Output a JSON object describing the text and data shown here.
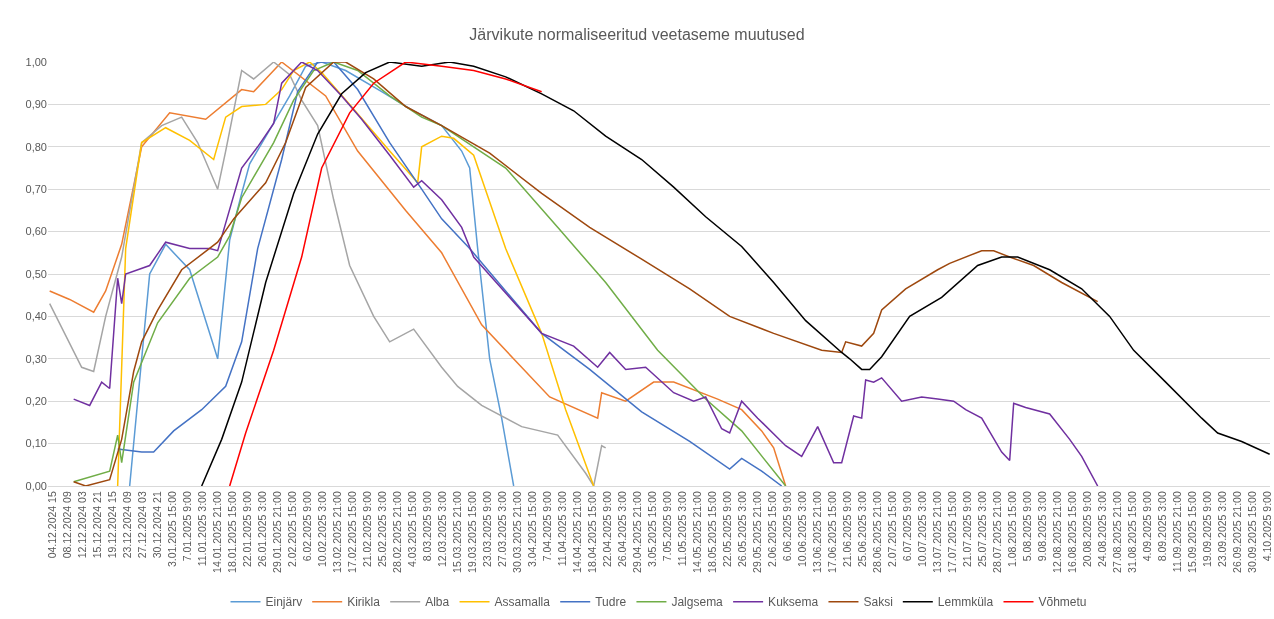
{
  "chart_data": {
    "type": "line",
    "title": "Järvikute normaliseeritud veetaseme muutused",
    "grid": "y",
    "legend": "bottom",
    "marker": "none",
    "line_style": "solid",
    "xlim": [
      "2024-12-03T14:00",
      "2025-10-05T02:00"
    ],
    "ylim": [
      0,
      1
    ],
    "yticks": [
      {
        "value": 0,
        "label": "0,00"
      },
      {
        "value": 0.1,
        "label": "0,10"
      },
      {
        "value": 0.2,
        "label": "0,20"
      },
      {
        "value": 0.3,
        "label": "0,30"
      },
      {
        "value": 0.4,
        "label": "0,40"
      },
      {
        "value": 0.5,
        "label": "0,50"
      },
      {
        "value": 0.6,
        "label": "0,60"
      },
      {
        "value": 0.7,
        "label": "0,70"
      },
      {
        "value": 0.8,
        "label": "0,80"
      },
      {
        "value": 0.9,
        "label": "0,90"
      },
      {
        "value": 1,
        "label": "1,00"
      }
    ],
    "xticks": [
      {
        "value": "2024-12-04T15:00",
        "label": "04.12.2024 15"
      },
      {
        "value": "2024-12-08T09:00",
        "label": "08.12.2024 09"
      },
      {
        "value": "2024-12-12T03:00",
        "label": "12.12.2024 03"
      },
      {
        "value": "2024-12-15T21:00",
        "label": "15.12.2024 21"
      },
      {
        "value": "2024-12-19T15:00",
        "label": "19.12.2024 15"
      },
      {
        "value": "2024-12-23T09:00",
        "label": "23.12.2024 09"
      },
      {
        "value": "2024-12-27T03:00",
        "label": "27.12.2024 03"
      },
      {
        "value": "2024-12-30T21:00",
        "label": "30.12.2024 21"
      },
      {
        "value": "2025-01-03T15:00",
        "label": "3.01.2025 15:00"
      },
      {
        "value": "2025-01-07T09:00",
        "label": "7.01.2025 9:00"
      },
      {
        "value": "2025-01-11T03:00",
        "label": "11.01.2025 3:00"
      },
      {
        "value": "2025-01-14T21:00",
        "label": "14.01.2025 21:00"
      },
      {
        "value": "2025-01-18T15:00",
        "label": "18.01.2025 15:00"
      },
      {
        "value": "2025-01-22T09:00",
        "label": "22.01.2025 9:00"
      },
      {
        "value": "2025-01-26T03:00",
        "label": "26.01.2025 3:00"
      },
      {
        "value": "2025-01-29T21:00",
        "label": "29.01.2025 21:00"
      },
      {
        "value": "2025-02-02T15:00",
        "label": "2.02.2025 15:00"
      },
      {
        "value": "2025-02-06T09:00",
        "label": "6.02.2025 9:00"
      },
      {
        "value": "2025-02-10T03:00",
        "label": "10.02.2025 3:00"
      },
      {
        "value": "2025-02-13T21:00",
        "label": "13.02.2025 21:00"
      },
      {
        "value": "2025-02-17T15:00",
        "label": "17.02.2025 15:00"
      },
      {
        "value": "2025-02-21T09:00",
        "label": "21.02.2025 9:00"
      },
      {
        "value": "2025-02-25T03:00",
        "label": "25.02.2025 3:00"
      },
      {
        "value": "2025-02-28T21:00",
        "label": "28.02.2025 21:00"
      },
      {
        "value": "2025-03-04T15:00",
        "label": "4.03.2025 15:00"
      },
      {
        "value": "2025-03-08T09:00",
        "label": "8.03.2025 9:00"
      },
      {
        "value": "2025-03-12T03:00",
        "label": "12.03.2025 3:00"
      },
      {
        "value": "2025-03-15T21:00",
        "label": "15.03.2025 21:00"
      },
      {
        "value": "2025-03-19T15:00",
        "label": "19.03.2025 15:00"
      },
      {
        "value": "2025-03-23T09:00",
        "label": "23.03.2025 9:00"
      },
      {
        "value": "2025-03-27T03:00",
        "label": "27.03.2025 3:00"
      },
      {
        "value": "2025-03-30T21:00",
        "label": "30.03.2025 21:00"
      },
      {
        "value": "2025-04-03T15:00",
        "label": "3.04.2025 15:00"
      },
      {
        "value": "2025-04-07T09:00",
        "label": "7.04.2025 9:00"
      },
      {
        "value": "2025-04-11T03:00",
        "label": "11.04.2025 3:00"
      },
      {
        "value": "2025-04-14T21:00",
        "label": "14.04.2025 21:00"
      },
      {
        "value": "2025-04-18T15:00",
        "label": "18.04.2025 15:00"
      },
      {
        "value": "2025-04-22T09:00",
        "label": "22.04.2025 9:00"
      },
      {
        "value": "2025-04-26T03:00",
        "label": "26.04.2025 3:00"
      },
      {
        "value": "2025-04-29T21:00",
        "label": "29.04.2025 21:00"
      },
      {
        "value": "2025-05-03T15:00",
        "label": "3.05.2025 15:00"
      },
      {
        "value": "2025-05-07T09:00",
        "label": "7.05.2025 9:00"
      },
      {
        "value": "2025-05-11T03:00",
        "label": "11.05.2025 3:00"
      },
      {
        "value": "2025-05-14T21:00",
        "label": "14.05.2025 21:00"
      },
      {
        "value": "2025-05-18T15:00",
        "label": "18.05.2025 15:00"
      },
      {
        "value": "2025-05-22T09:00",
        "label": "22.05.2025 9:00"
      },
      {
        "value": "2025-05-26T03:00",
        "label": "26.05.2025 3:00"
      },
      {
        "value": "2025-05-29T21:00",
        "label": "29.05.2025 21:00"
      },
      {
        "value": "2025-06-02T15:00",
        "label": "2.06.2025 15:00"
      },
      {
        "value": "2025-06-06T09:00",
        "label": "6.06.2025 9:00"
      },
      {
        "value": "2025-06-10T03:00",
        "label": "10.06.2025 3:00"
      },
      {
        "value": "2025-06-13T21:00",
        "label": "13.06.2025 21:00"
      },
      {
        "value": "2025-06-17T15:00",
        "label": "17.06.2025 15:00"
      },
      {
        "value": "2025-06-21T09:00",
        "label": "21.06.2025 9:00"
      },
      {
        "value": "2025-06-25T03:00",
        "label": "25.06.2025 3:00"
      },
      {
        "value": "2025-06-28T21:00",
        "label": "28.06.2025 21:00"
      },
      {
        "value": "2025-07-02T15:00",
        "label": "2.07.2025 15:00"
      },
      {
        "value": "2025-07-06T09:00",
        "label": "6.07.2025 9:00"
      },
      {
        "value": "2025-07-10T03:00",
        "label": "10.07.2025 3:00"
      },
      {
        "value": "2025-07-13T21:00",
        "label": "13.07.2025 21:00"
      },
      {
        "value": "2025-07-17T15:00",
        "label": "17.07.2025 15:00"
      },
      {
        "value": "2025-07-21T09:00",
        "label": "21.07.2025 9:00"
      },
      {
        "value": "2025-07-25T03:00",
        "label": "25.07.2025 3:00"
      },
      {
        "value": "2025-07-28T21:00",
        "label": "28.07.2025 21:00"
      },
      {
        "value": "2025-08-01T15:00",
        "label": "1.08.2025 15:00"
      },
      {
        "value": "2025-08-05T09:00",
        "label": "5.08.2025 9:00"
      },
      {
        "value": "2025-08-09T03:00",
        "label": "9.08.2025 3:00"
      },
      {
        "value": "2025-08-12T21:00",
        "label": "12.08.2025 21:00"
      },
      {
        "value": "2025-08-16T15:00",
        "label": "16.08.2025 15:00"
      },
      {
        "value": "2025-08-20T09:00",
        "label": "20.08.2025 9:00"
      },
      {
        "value": "2025-08-24T03:00",
        "label": "24.08.2025 3:00"
      },
      {
        "value": "2025-08-27T21:00",
        "label": "27.08.2025 21:00"
      },
      {
        "value": "2025-08-31T15:00",
        "label": "31.08.2025 15:00"
      },
      {
        "value": "2025-09-04T09:00",
        "label": "4.09.2025 9:00"
      },
      {
        "value": "2025-09-08T03:00",
        "label": "8.09.2025 3:00"
      },
      {
        "value": "2025-09-11T21:00",
        "label": "11.09.2025 21:00"
      },
      {
        "value": "2025-09-15T15:00",
        "label": "15.09.2025 15:00"
      },
      {
        "value": "2025-09-19T09:00",
        "label": "19.09.2025 9:00"
      },
      {
        "value": "2025-09-23T03:00",
        "label": "23.09.2025 3:00"
      },
      {
        "value": "2025-09-26T21:00",
        "label": "26.09.2025 21:00"
      },
      {
        "value": "2025-09-30T15:00",
        "label": "30.09.2025 15:00"
      },
      {
        "value": "2025-10-04T09:00",
        "label": "4.10.2025 9:00"
      }
    ],
    "series": [
      {
        "name": "Einjärv",
        "color": "#5b9bd5",
        "x": [
          "2024-12-24",
          "2024-12-29",
          "2025-01-02",
          "2025-01-08",
          "2025-01-15",
          "2025-01-18",
          "2025-01-21",
          "2025-01-23",
          "2025-01-28",
          "2025-02-02",
          "2025-02-06",
          "2025-02-10",
          "2025-02-16",
          "2025-02-25",
          "2025-03-04",
          "2025-03-12",
          "2025-03-17",
          "2025-03-19",
          "2025-03-21",
          "2025-03-24",
          "2025-03-27",
          "2025-03-30"
        ],
        "values": [
          0,
          0.5,
          0.57,
          0.51,
          0.3,
          0.58,
          0.69,
          0.76,
          0.84,
          0.92,
          0.99,
          1,
          0.98,
          0.93,
          0.89,
          0.85,
          0.79,
          0.75,
          0.56,
          0.3,
          0.16,
          0
        ]
      },
      {
        "name": "Kirikla",
        "color": "#ed7d31",
        "x": [
          "2024-12-04",
          "2024-12-09",
          "2024-12-15",
          "2024-12-18",
          "2024-12-22",
          "2024-12-27",
          "2025-01-03",
          "2025-01-12",
          "2025-01-21",
          "2025-01-24",
          "2025-01-31",
          "2025-02-11",
          "2025-02-19",
          "2025-03-03",
          "2025-03-12",
          "2025-03-22",
          "2025-04-08",
          "2025-04-20",
          "2025-04-21",
          "2025-04-27",
          "2025-05-04",
          "2025-05-09",
          "2025-05-20",
          "2025-05-26",
          "2025-05-31",
          "2025-06-03",
          "2025-06-06"
        ],
        "values": [
          0.46,
          0.44,
          0.41,
          0.46,
          0.57,
          0.8,
          0.88,
          0.865,
          0.935,
          0.93,
          1,
          0.92,
          0.79,
          0.65,
          0.55,
          0.38,
          0.21,
          0.16,
          0.22,
          0.2,
          0.245,
          0.245,
          0.205,
          0.18,
          0.13,
          0.09,
          0
        ]
      },
      {
        "name": "Alba",
        "color": "#a5a5a5",
        "x": [
          "2024-12-04",
          "2024-12-12",
          "2024-12-15",
          "2024-12-18",
          "2024-12-22",
          "2024-12-27",
          "2025-01-01",
          "2025-01-06",
          "2025-01-10",
          "2025-01-15",
          "2025-01-17",
          "2025-01-21",
          "2025-01-24",
          "2025-01-29",
          "2025-02-02",
          "2025-02-05",
          "2025-02-09",
          "2025-02-13",
          "2025-02-17",
          "2025-02-23",
          "2025-02-27",
          "2025-03-05",
          "2025-03-12",
          "2025-03-16",
          "2025-03-22",
          "2025-04-01",
          "2025-04-10",
          "2025-04-17",
          "2025-04-19",
          "2025-04-21",
          "2025-04-22"
        ],
        "values": [
          0.43,
          0.28,
          0.27,
          0.4,
          0.54,
          0.81,
          0.85,
          0.87,
          0.81,
          0.7,
          0.79,
          0.98,
          0.96,
          1,
          0.97,
          0.91,
          0.85,
          0.675,
          0.52,
          0.4,
          0.34,
          0.37,
          0.28,
          0.235,
          0.19,
          0.14,
          0.12,
          0.03,
          0,
          0.095,
          0.09
        ]
      },
      {
        "name": "Assamalla",
        "color": "#ffc000",
        "x": [
          "2024-12-21",
          "2024-12-23",
          "2024-12-27",
          "2025-01-02",
          "2025-01-08",
          "2025-01-14",
          "2025-01-17",
          "2025-01-21",
          "2025-01-27",
          "2025-01-31",
          "2025-02-03",
          "2025-02-07",
          "2025-02-10",
          "2025-02-17",
          "2025-02-27",
          "2025-03-06",
          "2025-03-07",
          "2025-03-12",
          "2025-03-15",
          "2025-03-20",
          "2025-03-28",
          "2025-04-06",
          "2025-04-12",
          "2025-04-19"
        ],
        "values": [
          0,
          0.56,
          0.81,
          0.845,
          0.815,
          0.77,
          0.87,
          0.895,
          0.9,
          0.935,
          0.98,
          1,
          0.975,
          0.9,
          0.79,
          0.715,
          0.8,
          0.825,
          0.82,
          0.78,
          0.56,
          0.36,
          0.18,
          0
        ]
      },
      {
        "name": "Tudre",
        "color": "#4472c4",
        "x": [
          "2024-12-21",
          "2024-12-27",
          "2024-12-30",
          "2025-01-04",
          "2025-01-11",
          "2025-01-17",
          "2025-01-21",
          "2025-01-25",
          "2025-01-31",
          "2025-02-04",
          "2025-02-09",
          "2025-02-13",
          "2025-02-19",
          "2025-02-27",
          "2025-03-07",
          "2025-03-12",
          "2025-03-19",
          "2025-04-06",
          "2025-04-18",
          "2025-05-01",
          "2025-05-13",
          "2025-05-23",
          "2025-05-26",
          "2025-05-31",
          "2025-06-05"
        ],
        "values": [
          0.087,
          0.08,
          0.08,
          0.13,
          0.18,
          0.235,
          0.34,
          0.56,
          0.77,
          0.93,
          1,
          1,
          0.935,
          0.81,
          0.7,
          0.63,
          0.56,
          0.36,
          0.275,
          0.175,
          0.105,
          0.04,
          0.065,
          0.035,
          0
        ]
      },
      {
        "name": "Jalgsema",
        "color": "#70ad47",
        "x": [
          "2024-12-10",
          "2024-12-19",
          "2024-12-21",
          "2024-12-22",
          "2024-12-25",
          "2024-12-31",
          "2025-01-08",
          "2025-01-15",
          "2025-01-18",
          "2025-01-21",
          "2025-01-29",
          "2025-02-03",
          "2025-02-08",
          "2025-02-13",
          "2025-02-19",
          "2025-02-27",
          "2025-03-07",
          "2025-03-12",
          "2025-03-28",
          "2025-04-10",
          "2025-04-22",
          "2025-05-05",
          "2025-05-17",
          "2025-05-26",
          "2025-06-06"
        ],
        "values": [
          0.01,
          0.035,
          0.12,
          0.055,
          0.245,
          0.385,
          0.49,
          0.54,
          0.59,
          0.68,
          0.81,
          0.91,
          0.98,
          1,
          0.98,
          0.92,
          0.87,
          0.85,
          0.75,
          0.61,
          0.48,
          0.32,
          0.205,
          0.13,
          0
        ]
      },
      {
        "name": "Kuksema",
        "color": "#7030a0",
        "x": [
          "2024-12-10",
          "2024-12-14",
          "2024-12-17",
          "2024-12-19",
          "2024-12-21",
          "2024-12-22",
          "2024-12-23",
          "2024-12-29",
          "2025-01-02",
          "2025-01-08",
          "2025-01-13",
          "2025-01-15",
          "2025-01-17",
          "2025-01-21",
          "2025-01-25",
          "2025-01-29",
          "2025-01-31",
          "2025-02-05",
          "2025-02-09",
          "2025-02-15",
          "2025-02-20",
          "2025-02-27",
          "2025-03-05",
          "2025-03-07",
          "2025-03-12",
          "2025-03-17",
          "2025-03-20",
          "2025-03-28",
          "2025-04-06",
          "2025-04-14",
          "2025-04-20",
          "2025-04-23",
          "2025-04-27",
          "2025-05-02",
          "2025-05-09",
          "2025-05-14",
          "2025-05-17",
          "2025-05-21",
          "2025-05-23",
          "2025-05-26",
          "2025-05-30",
          "2025-06-06",
          "2025-06-10",
          "2025-06-14",
          "2025-06-18",
          "2025-06-20",
          "2025-06-23",
          "2025-06-25",
          "2025-06-26",
          "2025-06-28",
          "2025-06-30",
          "2025-07-05",
          "2025-07-10",
          "2025-07-14",
          "2025-07-18",
          "2025-07-21",
          "2025-07-25",
          "2025-07-30",
          "2025-08-01",
          "2025-08-02",
          "2025-08-05",
          "2025-08-11",
          "2025-08-16",
          "2025-08-19",
          "2025-08-23"
        ],
        "values": [
          0.205,
          0.19,
          0.245,
          0.23,
          0.49,
          0.43,
          0.5,
          0.52,
          0.575,
          0.56,
          0.56,
          0.555,
          0.62,
          0.75,
          0.8,
          0.855,
          0.95,
          1,
          0.98,
          0.92,
          0.865,
          0.78,
          0.705,
          0.72,
          0.675,
          0.61,
          0.54,
          0.455,
          0.36,
          0.33,
          0.28,
          0.315,
          0.275,
          0.28,
          0.22,
          0.2,
          0.21,
          0.135,
          0.125,
          0.2,
          0.16,
          0.095,
          0.07,
          0.14,
          0.055,
          0.055,
          0.165,
          0.16,
          0.25,
          0.245,
          0.255,
          0.2,
          0.21,
          0.205,
          0.2,
          0.18,
          0.16,
          0.08,
          0.06,
          0.195,
          0.185,
          0.17,
          0.11,
          0.07,
          0
        ]
      },
      {
        "name": "Saksi",
        "color": "#9e480e",
        "x": [
          "2024-12-10",
          "2024-12-13",
          "2024-12-19",
          "2024-12-22",
          "2024-12-25",
          "2024-12-27",
          "2024-12-31",
          "2025-01-06",
          "2025-01-15",
          "2025-01-19",
          "2025-01-27",
          "2025-02-01",
          "2025-02-06",
          "2025-02-13",
          "2025-02-16",
          "2025-02-23",
          "2025-03-03",
          "2025-03-12",
          "2025-03-24",
          "2025-04-06",
          "2025-04-18",
          "2025-05-01",
          "2025-05-13",
          "2025-05-23",
          "2025-06-03",
          "2025-06-15",
          "2025-06-20",
          "2025-06-21",
          "2025-06-25",
          "2025-06-28",
          "2025-06-30",
          "2025-07-06",
          "2025-07-14",
          "2025-07-17",
          "2025-07-25",
          "2025-07-28",
          "2025-08-01",
          "2025-08-07",
          "2025-08-14",
          "2025-08-23"
        ],
        "values": [
          0.01,
          0,
          0.015,
          0.11,
          0.27,
          0.34,
          0.415,
          0.51,
          0.575,
          0.63,
          0.715,
          0.81,
          0.94,
          1,
          1,
          0.96,
          0.895,
          0.85,
          0.785,
          0.69,
          0.61,
          0.535,
          0.465,
          0.4,
          0.36,
          0.32,
          0.315,
          0.34,
          0.33,
          0.36,
          0.415,
          0.465,
          0.51,
          0.525,
          0.555,
          0.555,
          0.54,
          0.52,
          0.48,
          0.435
        ]
      },
      {
        "name": "Lemmküla",
        "color": "#000000",
        "x": [
          "2025-01-11",
          "2025-01-16",
          "2025-01-21",
          "2025-01-27",
          "2025-02-03",
          "2025-02-09",
          "2025-02-15",
          "2025-02-21",
          "2025-02-27",
          "2025-03-07",
          "2025-03-14",
          "2025-03-20",
          "2025-03-28",
          "2025-04-06",
          "2025-04-14",
          "2025-04-22",
          "2025-05-01",
          "2025-05-09",
          "2025-05-17",
          "2025-05-26",
          "2025-06-03",
          "2025-06-11",
          "2025-06-20",
          "2025-06-22",
          "2025-06-25",
          "2025-06-27",
          "2025-06-30",
          "2025-07-07",
          "2025-07-15",
          "2025-07-24",
          "2025-07-30",
          "2025-08-03",
          "2025-08-11",
          "2025-08-19",
          "2025-08-26",
          "2025-09-01",
          "2025-09-09",
          "2025-09-18",
          "2025-09-22",
          "2025-09-28",
          "2025-10-05"
        ],
        "values": [
          0,
          0.11,
          0.245,
          0.48,
          0.69,
          0.83,
          0.925,
          0.975,
          1,
          0.99,
          1,
          0.99,
          0.965,
          0.925,
          0.885,
          0.825,
          0.77,
          0.705,
          0.635,
          0.565,
          0.48,
          0.39,
          0.315,
          0.3,
          0.275,
          0.275,
          0.305,
          0.4,
          0.445,
          0.52,
          0.54,
          0.54,
          0.51,
          0.465,
          0.4,
          0.32,
          0.245,
          0.16,
          0.125,
          0.105,
          0.075
        ]
      },
      {
        "name": "Võhmetu",
        "color": "#ff0000",
        "x": [
          "2025-01-18",
          "2025-01-22",
          "2025-01-29",
          "2025-02-05",
          "2025-02-10",
          "2025-02-17",
          "2025-02-23",
          "2025-03-03",
          "2025-03-12",
          "2025-03-20",
          "2025-03-28",
          "2025-04-06"
        ],
        "values": [
          0,
          0.125,
          0.32,
          0.54,
          0.75,
          0.88,
          0.95,
          1,
          0.99,
          0.98,
          0.96,
          0.93
        ]
      }
    ]
  }
}
